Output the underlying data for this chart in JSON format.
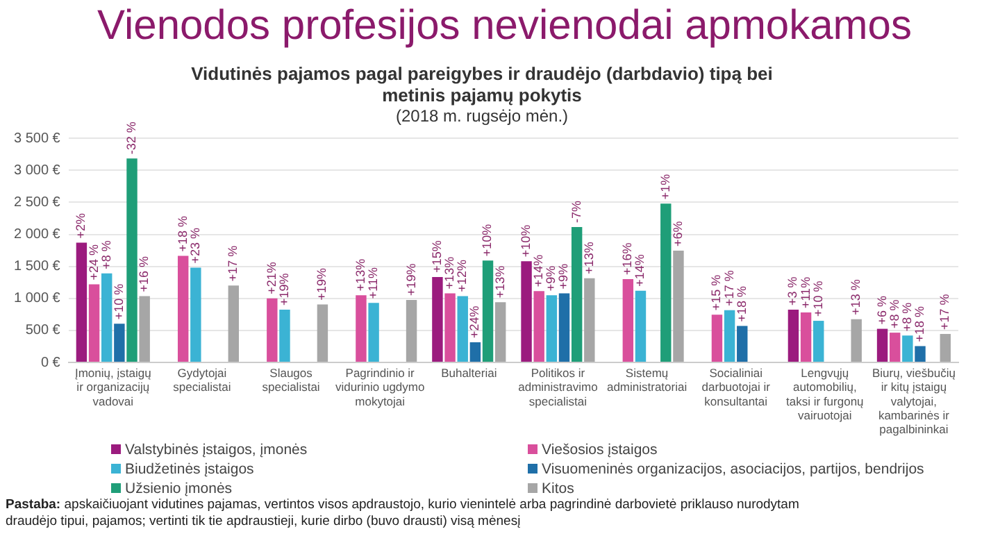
{
  "chart_data": {
    "type": "bar",
    "title": "Vienodos profesijos nevienodai apmokamos",
    "subtitle": "Vidutinės pajamos pagal pareigybes ir draudėjo (darbdavio) tipą bei metinis pajamų pokytis",
    "annotations": [
      "(2018 m. rugsėjo mėn.)",
      "Pastaba: apskaičiuojant vidutines pajamas, vertintos visos apdraustojo, kurio vienintelė arba pagrindinė darbovietė priklauso nurodytam draudėjo tipui, pajamos; vertinti tik tie apdraustieji, kurie dirbo (buvo drausti) visą mėnesį",
      "+2%",
      "+15%",
      "+10%",
      "+3 %",
      "+6 %",
      "+24 %",
      "+18 %",
      "+21%",
      "+13%",
      "+13%",
      "+14%",
      "+16%",
      "+15 %",
      "+11%",
      "+8 %",
      "+8 %",
      "+23 %",
      "+19%",
      "+11%",
      "+12%",
      "+9%",
      "+14%",
      "+17 %",
      "+10 %",
      "+8 %",
      "+10 %",
      "+24%",
      "+9%",
      "+18 %",
      "+18 %",
      "-32 %",
      "+10%",
      "-7%",
      "+1%",
      "+16 %",
      "+17 %",
      "+19%",
      "+19%",
      "+13%",
      "+13%",
      "+6%",
      "+13 %",
      "+17 %"
    ],
    "categories": [
      "Įmonių, įstaigų ir organizacijų vadovai",
      "Gydytojai specialistai",
      "Slaugos specialistai",
      "Pagrindinio ir vidurinio ugdymo mokytojai",
      "Buhalteriai",
      "Politikos ir administravimo specialistai",
      "Sistemų administratoriai",
      "Socialiniai darbuotojai ir konsultantai",
      "Lengvųjų automobilių, taksi ir furgonų vairuotojai",
      "Biurų, viešbučių ir kitų įstaigų valytojai, kambarinės ir pagalbininkai"
    ],
    "series": [
      {
        "name": "Valstybinės įstaigos, įmonės",
        "color": "#9b1b7e",
        "values": [
          1870,
          null,
          null,
          null,
          1335,
          1580,
          null,
          null,
          825,
          525
        ]
      },
      {
        "name": "Viešosios įstaigos",
        "color": "#d94f9c",
        "values": [
          1220,
          1665,
          1000,
          1050,
          1080,
          1115,
          1300,
          745,
          780,
          465
        ]
      },
      {
        "name": "Biudžetinės įstaigos",
        "color": "#3bb3d4",
        "values": [
          1390,
          1480,
          825,
          930,
          1035,
          1050,
          1120,
          815,
          650,
          420
        ]
      },
      {
        "name": "Visuomeninės organizacijos, asociacijos, partijos, bendrijos",
        "color": "#1f6fa8",
        "values": [
          605,
          null,
          null,
          null,
          315,
          1080,
          null,
          570,
          null,
          255
        ]
      },
      {
        "name": "Užsienio įmonės",
        "color": "#1f9e78",
        "values": [
          3185,
          null,
          null,
          null,
          1590,
          2115,
          2480,
          null,
          null,
          null
        ]
      },
      {
        "name": "Kitos",
        "color": "#a6a6a6",
        "values": [
          1035,
          1200,
          905,
          975,
          940,
          1315,
          1745,
          null,
          675,
          445
        ]
      }
    ],
    "ylim": [
      0,
      3500
    ],
    "yticks": [
      {
        "value": 0,
        "label": "0 €"
      },
      {
        "value": 500,
        "label": "500 €"
      },
      {
        "value": 1000,
        "label": "1 000 €"
      },
      {
        "value": 1500,
        "label": "1 500 €"
      },
      {
        "value": 2000,
        "label": "2 000 €"
      },
      {
        "value": 2500,
        "label": "2 500 €"
      },
      {
        "value": 3000,
        "label": "3 000 €"
      },
      {
        "value": 3500,
        "label": "3 500 €"
      }
    ],
    "grid": "y",
    "legend": "bottom"
  }
}
